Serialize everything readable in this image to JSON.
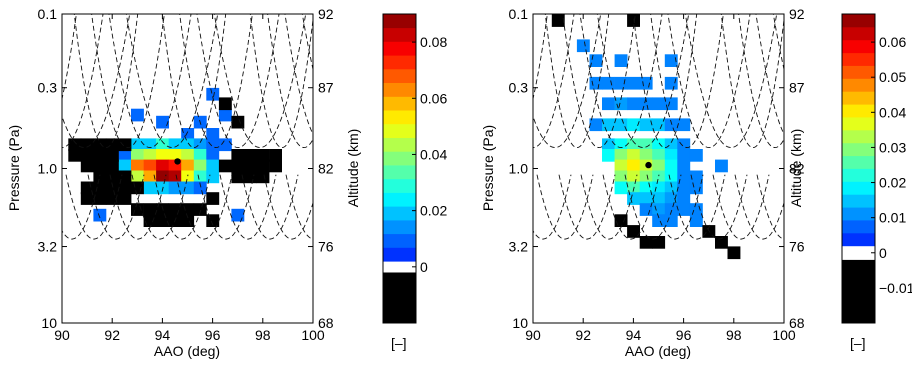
{
  "chart_data": [
    {
      "type": "heatmap",
      "xlabel": "AAO (deg)",
      "ylabel": "Pressure (Pa)",
      "y2label": "Altitude (km)",
      "xlim": [
        90,
        100
      ],
      "x_ticks": [
        90,
        92,
        94,
        96,
        98,
        100
      ],
      "y_scale": "log",
      "ylim": [
        10,
        0.1
      ],
      "y_ticks": [
        0.1,
        0.3,
        1.0,
        3.2,
        10
      ],
      "y_tick_labels": [
        "0.1",
        "0.3",
        "1.0",
        "3.2",
        "10"
      ],
      "y2_tick_labels": [
        "92",
        "87",
        "82",
        "76",
        "68"
      ],
      "colorbar": {
        "vmin": -0.02,
        "vmax": 0.09,
        "ticks": [
          0,
          0.02,
          0.04,
          0.06,
          0.08
        ],
        "tick_labels": [
          "0",
          "0.02",
          "0.04",
          "0.06",
          "0.08"
        ],
        "unit_label": "[–]",
        "white_band": [
          -0.002,
          0.002
        ]
      },
      "x_bin_deg": 0.5,
      "y_bin_decades": 0.08,
      "marker": {
        "x": 94.6,
        "y": 0.9
      },
      "cells": [
        [
          93.0,
          0.45,
          0.01
        ],
        [
          94.0,
          0.5,
          0.01
        ],
        [
          95.5,
          0.5,
          0.01
        ],
        [
          96.0,
          0.33,
          0.01
        ],
        [
          96.5,
          0.45,
          0.01
        ],
        [
          95.0,
          0.6,
          0.01
        ],
        [
          96.0,
          0.6,
          0.01
        ],
        [
          96.5,
          0.7,
          0.01
        ],
        [
          93.0,
          0.7,
          0.02
        ],
        [
          93.5,
          0.7,
          0.02
        ],
        [
          94.0,
          0.7,
          0.03
        ],
        [
          94.5,
          0.7,
          0.02
        ],
        [
          95.0,
          0.7,
          0.02
        ],
        [
          95.5,
          0.7,
          0.015
        ],
        [
          96.0,
          0.7,
          0.01
        ],
        [
          92.5,
          0.82,
          0.01
        ],
        [
          93.0,
          0.82,
          0.04
        ],
        [
          93.5,
          0.82,
          0.045
        ],
        [
          94.0,
          0.82,
          0.05
        ],
        [
          94.5,
          0.82,
          0.05
        ],
        [
          95.0,
          0.82,
          0.045
        ],
        [
          95.5,
          0.82,
          0.03
        ],
        [
          96.0,
          0.82,
          0.01
        ],
        [
          92.5,
          0.96,
          0.02
        ],
        [
          93.0,
          0.96,
          0.065
        ],
        [
          93.5,
          0.96,
          0.07
        ],
        [
          94.0,
          0.96,
          0.08
        ],
        [
          94.5,
          0.96,
          0.075
        ],
        [
          95.0,
          0.96,
          0.06
        ],
        [
          95.5,
          0.96,
          0.04
        ],
        [
          96.0,
          0.96,
          0.02
        ],
        [
          93.0,
          1.13,
          0.045
        ],
        [
          93.5,
          1.13,
          0.06
        ],
        [
          94.0,
          1.13,
          0.088
        ],
        [
          94.5,
          1.13,
          0.085
        ],
        [
          95.0,
          1.13,
          0.05
        ],
        [
          95.5,
          1.13,
          0.03
        ],
        [
          96.0,
          1.13,
          0.02
        ],
        [
          93.5,
          1.33,
          0.02
        ],
        [
          94.0,
          1.33,
          0.02
        ],
        [
          94.5,
          1.33,
          0.015
        ],
        [
          95.0,
          1.33,
          0.015
        ],
        [
          95.5,
          1.33,
          0.01
        ],
        [
          91.5,
          2.0,
          0.01
        ],
        [
          97.0,
          2.0,
          0.01
        ],
        [
          90.5,
          0.7,
          -0.01
        ],
        [
          91.0,
          0.7,
          -0.01
        ],
        [
          91.5,
          0.7,
          -0.01
        ],
        [
          92.0,
          0.7,
          -0.01
        ],
        [
          92.5,
          0.7,
          -0.01
        ],
        [
          90.5,
          0.82,
          -0.01
        ],
        [
          91.0,
          0.82,
          -0.01
        ],
        [
          91.5,
          0.82,
          -0.01
        ],
        [
          92.0,
          0.82,
          -0.01
        ],
        [
          91.0,
          0.96,
          -0.01
        ],
        [
          91.5,
          0.96,
          -0.01
        ],
        [
          92.0,
          0.96,
          -0.01
        ],
        [
          91.5,
          1.13,
          -0.01
        ],
        [
          92.0,
          1.13,
          -0.01
        ],
        [
          92.5,
          1.13,
          -0.01
        ],
        [
          91.0,
          1.33,
          -0.01
        ],
        [
          91.5,
          1.33,
          -0.01
        ],
        [
          92.0,
          1.33,
          -0.01
        ],
        [
          92.5,
          1.33,
          -0.01
        ],
        [
          93.0,
          1.33,
          -0.01
        ],
        [
          91.0,
          1.56,
          -0.01
        ],
        [
          91.5,
          1.56,
          -0.01
        ],
        [
          92.0,
          1.56,
          -0.01
        ],
        [
          92.5,
          1.56,
          -0.01
        ],
        [
          96.0,
          1.56,
          -0.01
        ],
        [
          93.0,
          1.84,
          -0.01
        ],
        [
          93.5,
          1.84,
          -0.01
        ],
        [
          94.0,
          1.84,
          -0.01
        ],
        [
          94.5,
          1.84,
          -0.01
        ],
        [
          95.0,
          1.84,
          -0.01
        ],
        [
          95.5,
          1.84,
          -0.01
        ],
        [
          93.5,
          2.17,
          -0.01
        ],
        [
          94.0,
          2.17,
          -0.01
        ],
        [
          94.5,
          2.17,
          -0.01
        ],
        [
          95.0,
          2.17,
          -0.01
        ],
        [
          96.0,
          2.17,
          -0.01
        ],
        [
          97.0,
          0.82,
          -0.01
        ],
        [
          97.5,
          0.82,
          -0.01
        ],
        [
          98.0,
          0.82,
          -0.01
        ],
        [
          98.5,
          0.82,
          -0.01
        ],
        [
          96.5,
          0.96,
          -0.01
        ],
        [
          97.0,
          0.96,
          -0.01
        ],
        [
          97.5,
          0.96,
          -0.01
        ],
        [
          98.0,
          0.96,
          -0.01
        ],
        [
          98.5,
          0.96,
          -0.01
        ],
        [
          97.0,
          1.13,
          -0.01
        ],
        [
          97.5,
          1.13,
          -0.01
        ],
        [
          98.0,
          1.13,
          -0.01
        ],
        [
          96.5,
          0.38,
          -0.01
        ],
        [
          97.0,
          0.5,
          -0.01
        ]
      ]
    },
    {
      "type": "heatmap",
      "xlabel": "AAO (deg)",
      "ylabel": "Pressure (Pa)",
      "y2label": "Altitude (km)",
      "xlim": [
        90,
        100
      ],
      "x_ticks": [
        90,
        92,
        94,
        96,
        98,
        100
      ],
      "y_scale": "log",
      "ylim": [
        10,
        0.1
      ],
      "y_ticks": [
        0.1,
        0.3,
        1.0,
        3.2,
        10
      ],
      "y_tick_labels": [
        "0.1",
        "0.3",
        "1.0",
        "3.2",
        "10"
      ],
      "y2_tick_labels": [
        "92",
        "87",
        "82",
        "76",
        "68"
      ],
      "colorbar": {
        "vmin": -0.02,
        "vmax": 0.068,
        "ticks": [
          -0.01,
          0,
          0.01,
          0.02,
          0.03,
          0.04,
          0.05,
          0.06
        ],
        "tick_labels": [
          "−0.01",
          "0",
          "0.01",
          "0.02",
          "0.03",
          "0.04",
          "0.05",
          "0.06"
        ],
        "unit_label": "[–]",
        "white_band": [
          -0.002,
          0.002
        ]
      },
      "x_bin_deg": 0.5,
      "y_bin_decades": 0.08,
      "marker": {
        "x": 94.6,
        "y": 0.95
      },
      "cells": [
        [
          91.0,
          0.11,
          -0.01
        ],
        [
          94.0,
          0.11,
          -0.01
        ],
        [
          92.0,
          0.16,
          0.01
        ],
        [
          92.5,
          0.2,
          0.01
        ],
        [
          93.5,
          0.2,
          0.01
        ],
        [
          95.5,
          0.2,
          0.01
        ],
        [
          92.5,
          0.28,
          0.01
        ],
        [
          93.0,
          0.28,
          0.01
        ],
        [
          93.5,
          0.28,
          0.01
        ],
        [
          94.0,
          0.28,
          0.01
        ],
        [
          94.5,
          0.28,
          0.01
        ],
        [
          95.5,
          0.28,
          0.01
        ],
        [
          93.0,
          0.38,
          0.01
        ],
        [
          93.5,
          0.38,
          0.012
        ],
        [
          94.0,
          0.38,
          0.01
        ],
        [
          94.5,
          0.38,
          0.01
        ],
        [
          95.0,
          0.38,
          0.01
        ],
        [
          95.5,
          0.38,
          0.01
        ],
        [
          92.5,
          0.52,
          0.01
        ],
        [
          93.0,
          0.52,
          0.015
        ],
        [
          93.5,
          0.52,
          0.015
        ],
        [
          94.0,
          0.52,
          0.018
        ],
        [
          94.5,
          0.52,
          0.015
        ],
        [
          95.0,
          0.52,
          0.015
        ],
        [
          95.5,
          0.52,
          0.01
        ],
        [
          96.0,
          0.52,
          0.01
        ],
        [
          93.0,
          0.7,
          0.015
        ],
        [
          93.5,
          0.7,
          0.02
        ],
        [
          94.0,
          0.7,
          0.025
        ],
        [
          94.5,
          0.7,
          0.025
        ],
        [
          95.0,
          0.7,
          0.02
        ],
        [
          95.5,
          0.7,
          0.015
        ],
        [
          96.0,
          0.7,
          0.01
        ],
        [
          93.0,
          0.82,
          0.02
        ],
        [
          93.5,
          0.82,
          0.03
        ],
        [
          94.0,
          0.82,
          0.035
        ],
        [
          94.5,
          0.82,
          0.03
        ],
        [
          95.0,
          0.82,
          0.025
        ],
        [
          95.5,
          0.82,
          0.018
        ],
        [
          96.0,
          0.82,
          0.01
        ],
        [
          96.5,
          0.82,
          0.01
        ],
        [
          93.5,
          0.96,
          0.035
        ],
        [
          94.0,
          0.96,
          0.04
        ],
        [
          94.5,
          0.96,
          0.035
        ],
        [
          95.0,
          0.96,
          0.03
        ],
        [
          95.5,
          0.96,
          0.02
        ],
        [
          96.0,
          0.96,
          0.01
        ],
        [
          97.5,
          0.96,
          0.01
        ],
        [
          93.5,
          1.13,
          0.03
        ],
        [
          94.0,
          1.13,
          0.035
        ],
        [
          94.5,
          1.13,
          0.03
        ],
        [
          95.0,
          1.13,
          0.025
        ],
        [
          95.5,
          1.13,
          0.02
        ],
        [
          96.0,
          1.13,
          0.01
        ],
        [
          96.5,
          1.13,
          0.01
        ],
        [
          93.5,
          1.33,
          0.02
        ],
        [
          94.0,
          1.33,
          0.025
        ],
        [
          94.5,
          1.33,
          0.02
        ],
        [
          95.0,
          1.33,
          0.018
        ],
        [
          95.5,
          1.33,
          0.015
        ],
        [
          96.0,
          1.33,
          0.01
        ],
        [
          96.5,
          1.33,
          0.01
        ],
        [
          94.0,
          1.56,
          0.015
        ],
        [
          94.5,
          1.56,
          0.015
        ],
        [
          95.0,
          1.56,
          0.015
        ],
        [
          95.5,
          1.56,
          0.012
        ],
        [
          96.0,
          1.56,
          0.01
        ],
        [
          94.5,
          1.84,
          0.01
        ],
        [
          95.0,
          1.84,
          0.012
        ],
        [
          95.5,
          1.84,
          0.01
        ],
        [
          96.0,
          1.84,
          0.01
        ],
        [
          96.5,
          1.84,
          0.01
        ],
        [
          95.0,
          2.17,
          0.01
        ],
        [
          95.5,
          2.17,
          0.01
        ],
        [
          96.5,
          2.17,
          0.01
        ],
        [
          93.5,
          2.17,
          -0.01
        ],
        [
          94.0,
          2.55,
          -0.01
        ],
        [
          94.5,
          3.0,
          -0.01
        ],
        [
          95.0,
          3.0,
          -0.01
        ],
        [
          97.0,
          2.55,
          -0.01
        ],
        [
          97.5,
          3.0,
          -0.01
        ],
        [
          98.0,
          3.5,
          -0.01
        ]
      ]
    }
  ]
}
